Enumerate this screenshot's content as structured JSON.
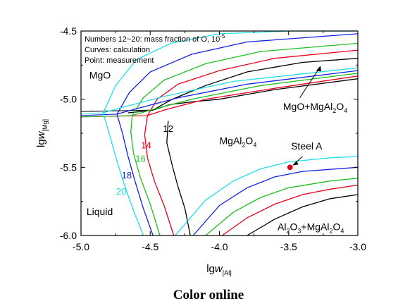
{
  "caption": "Color online",
  "chart_data": {
    "type": "line",
    "xlabel_main": "lg",
    "xlabel_italic": "w",
    "xlabel_sub": "[Al]",
    "ylabel_main": "lg",
    "ylabel_italic": "w",
    "ylabel_sub": "[Mg]",
    "xlim": [
      -5.0,
      -3.0
    ],
    "ylim": [
      -6.0,
      -4.5
    ],
    "x_ticks": [
      -5.0,
      -4.5,
      -4.0,
      -3.5,
      -3.0
    ],
    "x_tick_labels": [
      "-5.0",
      "-4.5",
      "-4.0",
      "-3.5",
      "-3.0"
    ],
    "y_ticks": [
      -6.0,
      -5.5,
      -5.0,
      -4.5
    ],
    "y_tick_labels": [
      "-6.0",
      "-5.5",
      "-5.0",
      "-4.5"
    ],
    "legend_lines": [
      "Numbers 12~20: mass fraction of O, 10",
      "Curves: calculation",
      "Point: measurement"
    ],
    "legend_superscript": "-5",
    "regions": [
      {
        "text": "MgO",
        "x": -4.94,
        "y": -4.85
      },
      {
        "text": "Liquid",
        "x": -4.96,
        "y": -5.85
      },
      {
        "text": "MgAl",
        "sub": "2",
        "text2": "O",
        "sub2": "4",
        "x": -4.0,
        "y": -5.33
      },
      {
        "text": "MgO+MgAl",
        "sub": "2",
        "text2": "O",
        "sub2": "4",
        "x": -3.54,
        "y": -5.08
      },
      {
        "text": "Al",
        "sub": "2",
        "text2": "O",
        "sub2": "3",
        "text3": "+MgAl",
        "sub3": "2",
        "text4": "O",
        "sub4": "4",
        "x": -3.58,
        "y": -5.96
      }
    ],
    "point": {
      "label": "Steel A",
      "x": -3.49,
      "y": -5.5,
      "color": "#e8001c"
    },
    "series": [
      {
        "name": "12",
        "color": "#000000",
        "label_pos": [
          -4.37,
          -5.24
        ],
        "liquid_boundary": [
          [
            -4.66,
            -5.1
          ],
          [
            -4.56,
            -5.09
          ],
          [
            -4.48,
            -5.08
          ]
        ],
        "liquid_mgal2o4": [
          [
            -4.37,
            -5.16
          ],
          [
            -4.38,
            -5.32
          ],
          [
            -4.34,
            -5.49
          ],
          [
            -4.3,
            -5.64
          ],
          [
            -4.25,
            -5.8
          ],
          [
            -4.21,
            -6.0
          ]
        ],
        "mgo_mgal2o4": [
          [
            -4.48,
            -5.08
          ],
          [
            -4.34,
            -5.0
          ],
          [
            -4.1,
            -4.9
          ],
          [
            -3.8,
            -4.8
          ],
          [
            -3.4,
            -4.73
          ],
          [
            -3.0,
            -4.7
          ]
        ],
        "lower_left": [
          [
            -4.48,
            -5.08
          ],
          [
            -4.42,
            -5.06
          ],
          [
            -4.36,
            -5.04
          ],
          [
            -4.2,
            -5.02
          ],
          [
            -4.0,
            -5.0
          ],
          [
            -3.6,
            -4.93
          ],
          [
            -3.0,
            -4.85
          ]
        ],
        "al2o3_mgal2o4": [
          [
            -3.8,
            -6.0
          ],
          [
            -3.6,
            -5.88
          ],
          [
            -3.4,
            -5.79
          ],
          [
            -3.2,
            -5.73
          ],
          [
            -3.0,
            -5.7
          ]
        ]
      },
      {
        "name": "14",
        "color": "#e8001c",
        "label_pos": [
          -4.53,
          -5.36
        ],
        "liquid_mgal2o4": [
          [
            -4.52,
            -5.12
          ],
          [
            -4.54,
            -5.26
          ],
          [
            -4.52,
            -5.43
          ],
          [
            -4.47,
            -5.6
          ],
          [
            -4.4,
            -5.78
          ],
          [
            -4.33,
            -6.0
          ]
        ],
        "mgo_mgal2o4": [
          [
            -4.52,
            -5.12
          ],
          [
            -4.45,
            -5.0
          ],
          [
            -4.3,
            -4.89
          ],
          [
            -4.0,
            -4.79
          ],
          [
            -3.6,
            -4.7
          ],
          [
            -3.0,
            -4.64
          ]
        ],
        "lower_left": [
          [
            -4.52,
            -5.12
          ],
          [
            -4.4,
            -5.08
          ],
          [
            -4.1,
            -5.0
          ],
          [
            -3.6,
            -4.92
          ],
          [
            -3.0,
            -4.83
          ]
        ],
        "al2o3_mgal2o4": [
          [
            -3.98,
            -6.0
          ],
          [
            -3.8,
            -5.87
          ],
          [
            -3.6,
            -5.77
          ],
          [
            -3.4,
            -5.7
          ],
          [
            -3.2,
            -5.66
          ],
          [
            -3.0,
            -5.63
          ]
        ]
      },
      {
        "name": "16",
        "color": "#1fbf1f",
        "label_pos": [
          -4.57,
          -5.46
        ],
        "liquid_mgal2o4": [
          [
            -4.63,
            -5.12
          ],
          [
            -4.64,
            -5.24
          ],
          [
            -4.62,
            -5.4
          ],
          [
            -4.57,
            -5.58
          ],
          [
            -4.5,
            -5.77
          ],
          [
            -4.43,
            -6.0
          ]
        ],
        "mgo_mgal2o4": [
          [
            -4.63,
            -5.12
          ],
          [
            -4.55,
            -4.99
          ],
          [
            -4.4,
            -4.86
          ],
          [
            -4.1,
            -4.74
          ],
          [
            -3.7,
            -4.65
          ],
          [
            -3.0,
            -4.59
          ]
        ],
        "lower_left": [
          [
            -4.63,
            -5.12
          ],
          [
            -4.5,
            -5.08
          ],
          [
            -4.2,
            -5.0
          ],
          [
            -3.7,
            -4.9
          ],
          [
            -3.0,
            -4.81
          ]
        ],
        "al2o3_mgal2o4": [
          [
            -4.1,
            -6.0
          ],
          [
            -3.9,
            -5.83
          ],
          [
            -3.7,
            -5.72
          ],
          [
            -3.5,
            -5.65
          ],
          [
            -3.2,
            -5.6
          ],
          [
            -3.0,
            -5.58
          ]
        ]
      },
      {
        "name": "18",
        "color": "#1020e0",
        "label_pos": [
          -4.67,
          -5.58
        ],
        "liquid_mgal2o4": [
          [
            -4.74,
            -5.11
          ],
          [
            -4.7,
            -5.25
          ],
          [
            -4.66,
            -5.42
          ],
          [
            -4.61,
            -5.6
          ],
          [
            -4.55,
            -5.8
          ],
          [
            -4.48,
            -6.0
          ]
        ],
        "mgo_mgal2o4": [
          [
            -4.74,
            -5.11
          ],
          [
            -4.65,
            -4.95
          ],
          [
            -4.5,
            -4.8
          ],
          [
            -4.2,
            -4.67
          ],
          [
            -3.8,
            -4.58
          ],
          [
            -3.0,
            -4.52
          ]
        ],
        "lower_left": [
          [
            -4.74,
            -5.11
          ],
          [
            -4.6,
            -5.07
          ],
          [
            -4.3,
            -4.99
          ],
          [
            -3.8,
            -4.89
          ],
          [
            -3.0,
            -4.79
          ]
        ],
        "al2o3_mgal2o4": [
          [
            -4.19,
            -6.0
          ],
          [
            -4.0,
            -5.78
          ],
          [
            -3.8,
            -5.65
          ],
          [
            -3.6,
            -5.57
          ],
          [
            -3.4,
            -5.53
          ],
          [
            -3.0,
            -5.5
          ]
        ]
      },
      {
        "name": "20",
        "color": "#20e0e8",
        "label_pos": [
          -4.71,
          -5.7
        ],
        "liquid_mgal2o4": [
          [
            -4.84,
            -5.1
          ],
          [
            -4.8,
            -5.24
          ],
          [
            -4.75,
            -5.42
          ],
          [
            -4.69,
            -5.62
          ],
          [
            -4.62,
            -5.82
          ],
          [
            -4.55,
            -6.0
          ]
        ],
        "mgo_mgal2o4": [
          [
            -4.84,
            -5.1
          ],
          [
            -4.75,
            -4.9
          ],
          [
            -4.6,
            -4.71
          ],
          [
            -4.35,
            -4.59
          ],
          [
            -4.0,
            -4.52
          ],
          [
            -3.5,
            -4.49
          ],
          [
            -3.0,
            -4.48
          ]
        ],
        "lower_left": [
          [
            -4.84,
            -5.1
          ],
          [
            -4.7,
            -5.06
          ],
          [
            -4.4,
            -4.98
          ],
          [
            -3.9,
            -4.87
          ],
          [
            -3.0,
            -4.77
          ]
        ],
        "al2o3_mgal2o4": [
          [
            -4.32,
            -6.0
          ],
          [
            -4.1,
            -5.74
          ],
          [
            -3.9,
            -5.6
          ],
          [
            -3.7,
            -5.51
          ],
          [
            -3.5,
            -5.46
          ],
          [
            -3.2,
            -5.43
          ],
          [
            -3.0,
            -5.42
          ]
        ]
      }
    ]
  }
}
